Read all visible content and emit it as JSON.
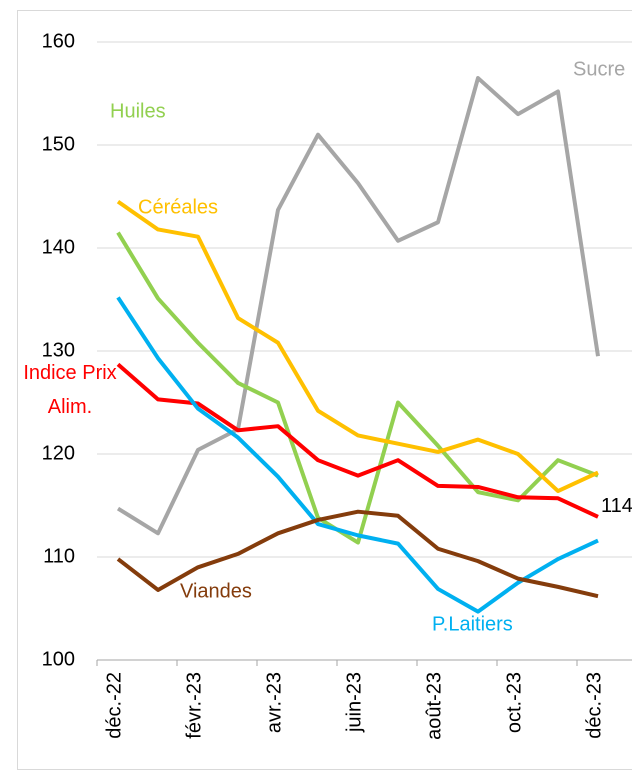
{
  "chart_data": {
    "type": "line",
    "categories": [
      "déc.-22",
      null,
      "févr.-23",
      null,
      "avr.-23",
      null,
      "juin-23",
      null,
      "août-23",
      null,
      "oct.-23",
      null,
      "déc.-23"
    ],
    "series": [
      {
        "name": "Sucre",
        "color": "#a6a6a6",
        "values": [
          114.7,
          112.3,
          120.4,
          122.4,
          143.7,
          151.0,
          146.3,
          140.7,
          142.5,
          156.5,
          153.0,
          155.2,
          129.5
        ]
      },
      {
        "name": "Huiles",
        "color": "#92d050",
        "values": [
          141.5,
          135.1,
          130.8,
          126.9,
          125.0,
          113.8,
          111.4,
          125.0,
          120.8,
          116.3,
          115.5,
          119.4,
          117.9
        ]
      },
      {
        "name": "Céréales",
        "color": "#ffc000",
        "values": [
          144.5,
          141.8,
          141.1,
          133.2,
          130.8,
          124.2,
          121.8,
          121.0,
          120.2,
          121.4,
          120.0,
          116.4,
          118.2
        ]
      },
      {
        "name": "Indice Prix Alim.",
        "color": "#ff0000",
        "values": [
          128.7,
          125.3,
          124.9,
          122.3,
          122.7,
          119.4,
          117.9,
          119.4,
          116.9,
          116.8,
          115.8,
          115.7,
          113.9
        ],
        "value_labels": [
          null,
          null,
          null,
          null,
          null,
          null,
          null,
          null,
          null,
          null,
          null,
          null,
          "114"
        ]
      },
      {
        "name": "P.Laitiers",
        "color": "#00b0f0",
        "values": [
          135.2,
          129.3,
          124.4,
          121.6,
          117.8,
          113.2,
          112.1,
          111.3,
          106.9,
          104.7,
          107.5,
          109.8,
          111.6
        ]
      },
      {
        "name": "Viandes",
        "color": "#843c0c",
        "values": [
          109.8,
          106.8,
          109.0,
          110.3,
          112.3,
          113.6,
          114.4,
          114.0,
          110.8,
          109.6,
          107.9,
          107.1,
          106.2
        ]
      }
    ],
    "ylim": [
      100,
      160
    ],
    "yticks": [
      100,
      110,
      120,
      130,
      140,
      150,
      160
    ],
    "grid": true
  }
}
